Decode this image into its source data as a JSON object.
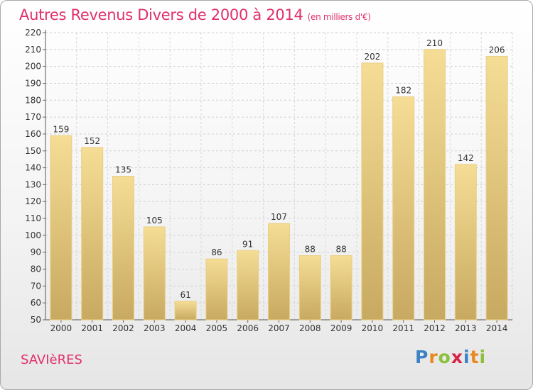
{
  "title": {
    "main": "Autres Revenus Divers de 2000 à 2014",
    "unit": "(en milliers d'€)"
  },
  "commune": "SAVIèRES",
  "logo": {
    "text": "Proxiti"
  },
  "colors": {
    "title": "#e0306b",
    "bar_light": "#f5dd95",
    "bar_dark": "#c8a961",
    "bar_border": "#e9cf83"
  },
  "chart_data": {
    "type": "bar",
    "categories": [
      "2000",
      "2001",
      "2002",
      "2003",
      "2004",
      "2005",
      "2006",
      "2007",
      "2008",
      "2009",
      "2010",
      "2011",
      "2012",
      "2013",
      "2014"
    ],
    "values": [
      159,
      152,
      135,
      105,
      61,
      86,
      91,
      107,
      88,
      88,
      202,
      182,
      210,
      142,
      206
    ],
    "ylim": [
      50,
      220
    ],
    "yticks": [
      50,
      60,
      70,
      80,
      90,
      100,
      110,
      120,
      130,
      140,
      150,
      160,
      170,
      180,
      190,
      200,
      210,
      220
    ],
    "grid": true,
    "xlabel": "",
    "ylabel": ""
  }
}
